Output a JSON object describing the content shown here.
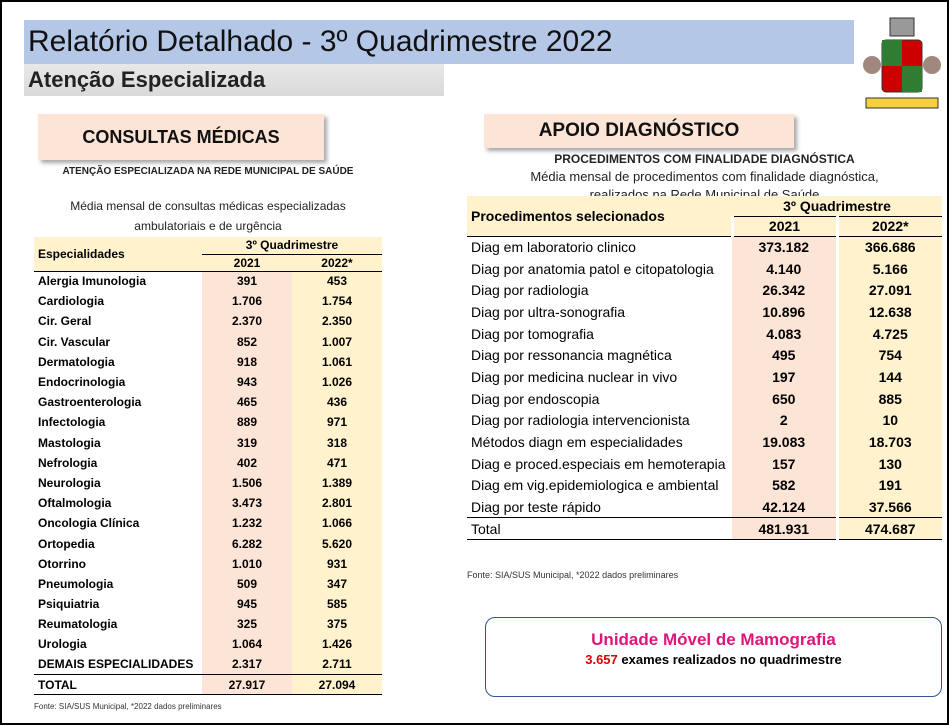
{
  "header": {
    "title": "Relatório Detalhado - 3º Quadrimestre 2022",
    "subtitle": "Atenção Especializada"
  },
  "left": {
    "banner": "CONSULTAS MÉDICAS",
    "heading": "ATENÇÃO ESPECIALIZADA NA REDE MUNICIPAL DE SAÚDE",
    "caption": [
      "Média mensal de consultas médicas especializadas",
      "ambulatoriais e de urgência"
    ],
    "table": {
      "first_col": "Especialidades",
      "group": "3º Quadrimestre",
      "years": [
        "2021",
        "2022*"
      ],
      "rows": [
        [
          "Alergia Imunologia",
          "391",
          "453"
        ],
        [
          "Cardiologia",
          "1.706",
          "1.754"
        ],
        [
          "Cir. Geral",
          "2.370",
          "2.350"
        ],
        [
          "Cir. Vascular",
          "852",
          "1.007"
        ],
        [
          "Dermatologia",
          "918",
          "1.061"
        ],
        [
          "Endocrinologia",
          "943",
          "1.026"
        ],
        [
          "Gastroenterologia",
          "465",
          "436"
        ],
        [
          "Infectologia",
          "889",
          "971"
        ],
        [
          "Mastologia",
          "319",
          "318"
        ],
        [
          "Nefrologia",
          "402",
          "471"
        ],
        [
          "Neurologia",
          "1.506",
          "1.389"
        ],
        [
          "Oftalmologia",
          "3.473",
          "2.801"
        ],
        [
          "Oncologia Clínica",
          "1.232",
          "1.066"
        ],
        [
          "Ortopedia",
          "6.282",
          "5.620"
        ],
        [
          "Otorrino",
          "1.010",
          "931"
        ],
        [
          "Pneumologia",
          "509",
          "347"
        ],
        [
          "Psiquiatria",
          "945",
          "585"
        ],
        [
          "Reumatologia",
          "325",
          "375"
        ],
        [
          "Urologia",
          "1.064",
          "1.426"
        ],
        [
          "DEMAIS ESPECIALIDADES",
          "2.317",
          "2.711"
        ]
      ],
      "total": [
        "TOTAL",
        "27.917",
        "27.094"
      ]
    },
    "source": "Fonte: SIA/SUS Municipal, *2022 dados preliminares"
  },
  "right": {
    "banner": "APOIO DIAGNÓSTICO",
    "heading": "PROCEDIMENTOS COM FINALIDADE DIAGNÓSTICA",
    "caption": [
      "Média mensal de procedimentos com finalidade diagnóstica,",
      "realizados na Rede Municipal de Saúde"
    ],
    "table": {
      "first_col": "Procedimentos selecionados",
      "group": "3º Quadrimestre",
      "years": [
        "2021",
        "2022*"
      ],
      "rows": [
        [
          "Diag em laboratorio clinico",
          "373.182",
          "366.686"
        ],
        [
          "Diag por anatomia patol e citopatologia",
          "4.140",
          "5.166"
        ],
        [
          "Diag por radiologia",
          "26.342",
          "27.091"
        ],
        [
          "Diag por ultra-sonografia",
          "10.896",
          "12.638"
        ],
        [
          "Diag por tomografia",
          "4.083",
          "4.725"
        ],
        [
          "Diag por ressonancia magnética",
          "495",
          "754"
        ],
        [
          "Diag por medicina nuclear in vivo",
          "197",
          "144"
        ],
        [
          "Diag por endoscopia",
          "650",
          "885"
        ],
        [
          "Diag por radiologia intervencionista",
          "2",
          "10"
        ],
        [
          "Métodos diagn em especialidades",
          "19.083",
          "18.703"
        ],
        [
          "Diag e proced.especiais em hemoterapia",
          "157",
          "130"
        ],
        [
          "Diag em vig.epidemiologica e ambiental",
          "582",
          "191"
        ],
        [
          "Diag por teste rápido",
          "42.124",
          "37.566"
        ]
      ],
      "total": [
        "Total",
        "481.931",
        "474.687"
      ]
    },
    "source": "Fonte: SIA/SUS Municipal, *2022  dados preliminares"
  },
  "mammography": {
    "title": "Unidade Móvel de Mamografia",
    "count": "3.657",
    "text": " exames realizados no quadrimestre"
  }
}
